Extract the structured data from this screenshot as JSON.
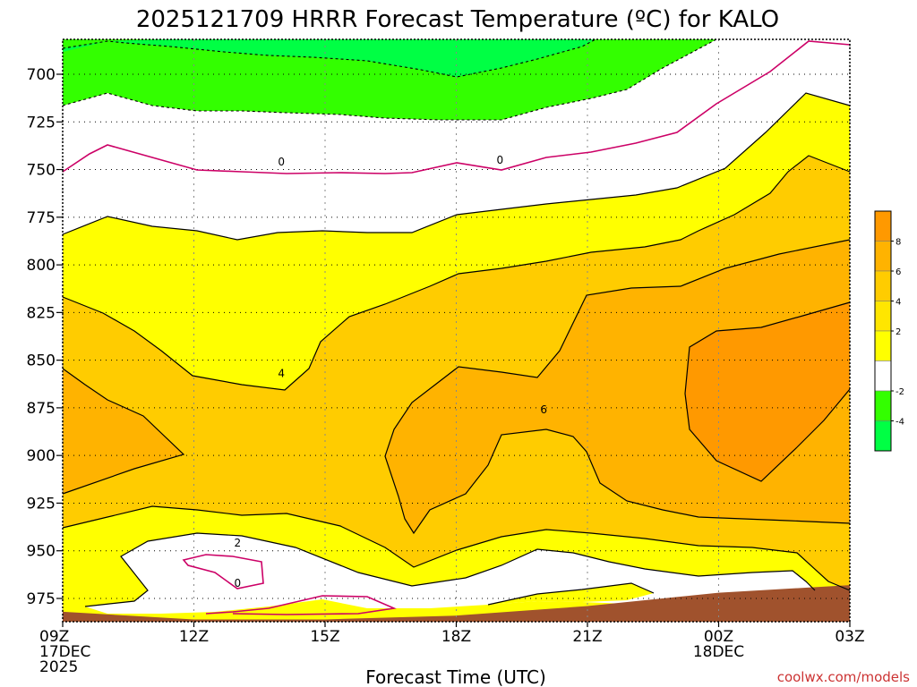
{
  "chart_data": {
    "type": "contour",
    "title": "2025121709 HRRR Forecast Temperature (ºC) for KALO",
    "xlabel": "Forecast Time (UTC)",
    "ylabel": "",
    "credit": "coolwx.com/models",
    "y_scale": "pressure (hPa), increasing downward",
    "ylim": [
      1000,
      680
    ],
    "yticks": [
      700,
      725,
      750,
      775,
      800,
      825,
      850,
      875,
      900,
      925,
      950,
      975
    ],
    "x_ticks": [
      {
        "hour": 0,
        "lines": [
          "09Z",
          "17DEC",
          "2025"
        ]
      },
      {
        "hour": 3,
        "lines": [
          "12Z"
        ]
      },
      {
        "hour": 6,
        "lines": [
          "15Z"
        ]
      },
      {
        "hour": 9,
        "lines": [
          "18Z"
        ]
      },
      {
        "hour": 12,
        "lines": [
          "21Z"
        ]
      },
      {
        "hour": 15,
        "lines": [
          "00Z",
          "18DEC"
        ]
      },
      {
        "hour": 18,
        "lines": [
          "03Z"
        ]
      }
    ],
    "xlim": [
      0,
      18
    ],
    "grid": true,
    "colorbar": {
      "placement": "right",
      "labels": [
        "8",
        "6",
        "4",
        "2",
        "-2",
        "-4"
      ],
      "bands": [
        {
          "range": [
            8,
            10
          ],
          "color": "#ff9900"
        },
        {
          "range": [
            6,
            8
          ],
          "color": "#ffb300"
        },
        {
          "range": [
            4,
            6
          ],
          "color": "#ffcc00"
        },
        {
          "range": [
            2,
            4
          ],
          "color": "#ffe600"
        },
        {
          "range": [
            0,
            2
          ],
          "color": "#ffff00"
        },
        {
          "range": [
            -2,
            0
          ],
          "color": "#ffffff"
        },
        {
          "range": [
            -4,
            -2
          ],
          "color": "#33ff00"
        },
        {
          "range": [
            -6,
            -4
          ],
          "color": "#00ff44"
        }
      ]
    },
    "contour_labels": [
      {
        "text": "0",
        "hour": 5.0,
        "p": 746
      },
      {
        "text": "0",
        "hour": 10.0,
        "p": 745
      },
      {
        "text": "4",
        "hour": 5.0,
        "p": 857
      },
      {
        "text": "6",
        "hour": 11.0,
        "p": 876
      },
      {
        "text": "2",
        "hour": 4.0,
        "p": 946
      },
      {
        "text": "0",
        "hour": 4.0,
        "p": 967
      }
    ],
    "terrain": {
      "color": "#a0522d",
      "surface_pressure": [
        [
          0,
          982
        ],
        [
          3,
          986
        ],
        [
          6,
          986
        ],
        [
          9,
          984
        ],
        [
          12,
          979
        ],
        [
          15,
          972
        ],
        [
          18,
          968
        ]
      ]
    }
  }
}
